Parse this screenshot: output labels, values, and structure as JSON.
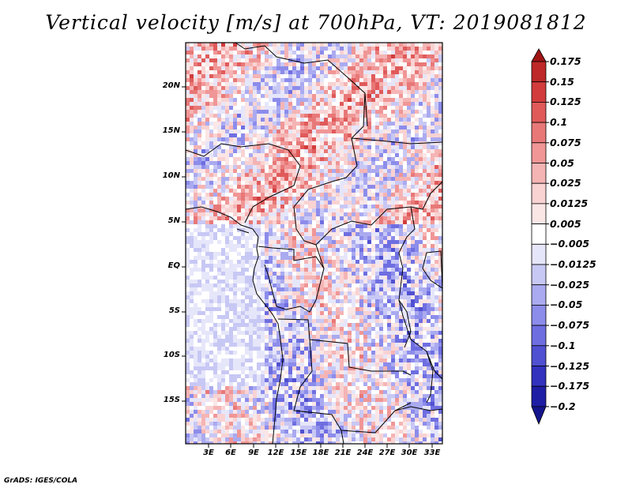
{
  "title": "Vertical velocity [m/s] at 700hPa, VT: 2019081812",
  "credit": "GrADS: IGES/COLA",
  "lat_labels": [
    "20N",
    "15N",
    "10N",
    "5N",
    "EQ",
    "5S",
    "10S",
    "15S"
  ],
  "lon_labels": [
    "3E",
    "6E",
    "9E",
    "12E",
    "15E",
    "18E",
    "21E",
    "24E",
    "27E",
    "30E",
    "33E"
  ],
  "colorbar": {
    "labels": [
      "0.175",
      "0.15",
      "0.125",
      "0.1",
      "0.075",
      "0.05",
      "0.025",
      "0.0125",
      "0.005",
      "−0.005",
      "−0.0125",
      "−0.025",
      "−0.05",
      "−0.075",
      "−0.1",
      "−0.125",
      "−0.175",
      "−0.2"
    ],
    "colors": [
      "#a01414",
      "#be2828",
      "#d23c3c",
      "#e05a5a",
      "#e87878",
      "#f09696",
      "#f5b4b4",
      "#f9d2d2",
      "#fbe6e6",
      "#ffffff",
      "#e6e6fa",
      "#c8c8f5",
      "#aaaaf0",
      "#8c8ceb",
      "#6e6ee1",
      "#5050d2",
      "#3232be",
      "#1e1ea5",
      "#14148c"
    ]
  }
}
